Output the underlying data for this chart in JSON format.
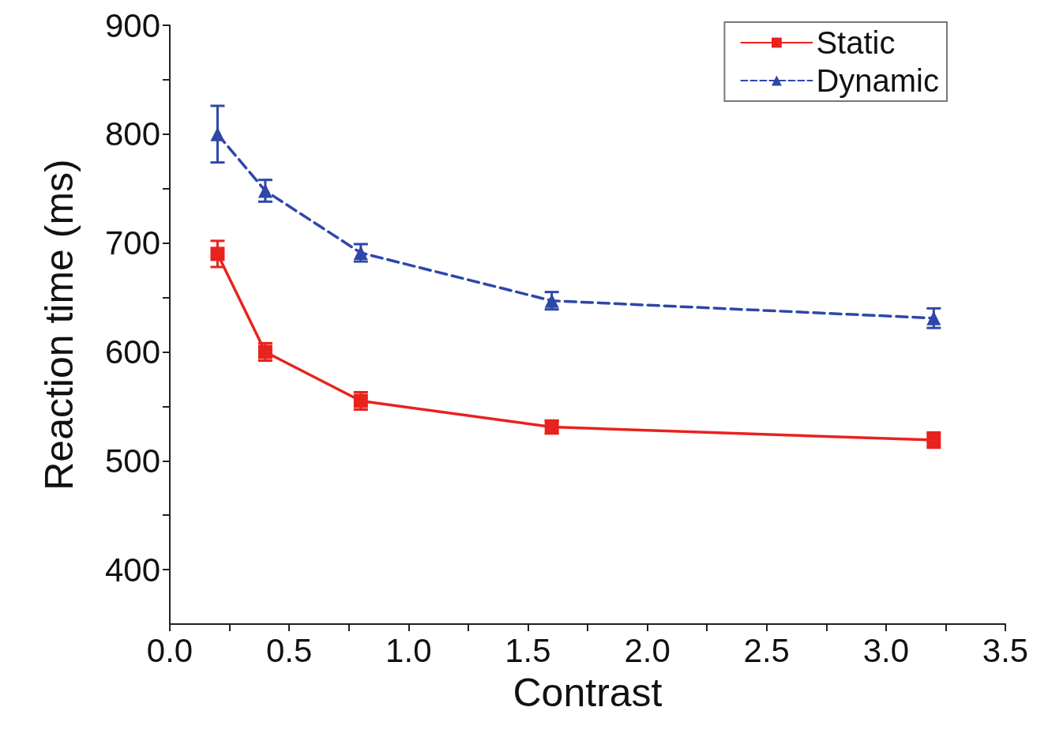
{
  "chart_data": {
    "type": "line",
    "xlabel": "Contrast",
    "ylabel": "Reaction time (ms)",
    "x": [
      0.2,
      0.4,
      0.8,
      1.6,
      3.2
    ],
    "series": [
      {
        "name": "Static",
        "color": "#e8221e",
        "values": [
          690,
          600,
          555,
          531,
          519
        ],
        "errors": [
          12,
          8,
          8,
          6,
          7
        ],
        "marker": "square",
        "line_style": "solid"
      },
      {
        "name": "Dynamic",
        "color": "#2e47a8",
        "values": [
          800,
          748,
          691,
          647,
          631
        ],
        "errors": [
          26,
          10,
          8,
          8,
          9
        ],
        "marker": "triangle",
        "line_style": "dashed"
      }
    ],
    "xlim": [
      0,
      3.5
    ],
    "xticks": [
      {
        "value": 0,
        "label": "0.0"
      },
      {
        "value": 0.25,
        "label": null
      },
      0.5,
      {
        "value": 0.75,
        "label": null
      },
      {
        "value": 1,
        "label": "1.0"
      },
      {
        "value": 1.25,
        "label": null
      },
      1.5,
      {
        "value": 1.75,
        "label": null
      },
      {
        "value": 2,
        "label": "2.0"
      },
      {
        "value": 2.25,
        "label": null
      },
      2.5,
      {
        "value": 2.75,
        "label": null
      },
      {
        "value": 3,
        "label": "3.0"
      },
      {
        "value": 3.25,
        "label": null
      },
      3.5
    ],
    "ylim": [
      350,
      900
    ],
    "yticks": [
      400,
      {
        "value": 450,
        "label": null
      },
      500,
      {
        "value": 550,
        "label": null
      },
      600,
      {
        "value": 650,
        "label": null
      },
      700,
      {
        "value": 750,
        "label": null
      },
      800,
      {
        "value": 850,
        "label": null
      },
      900
    ],
    "legend": "top right",
    "grid": false
  }
}
